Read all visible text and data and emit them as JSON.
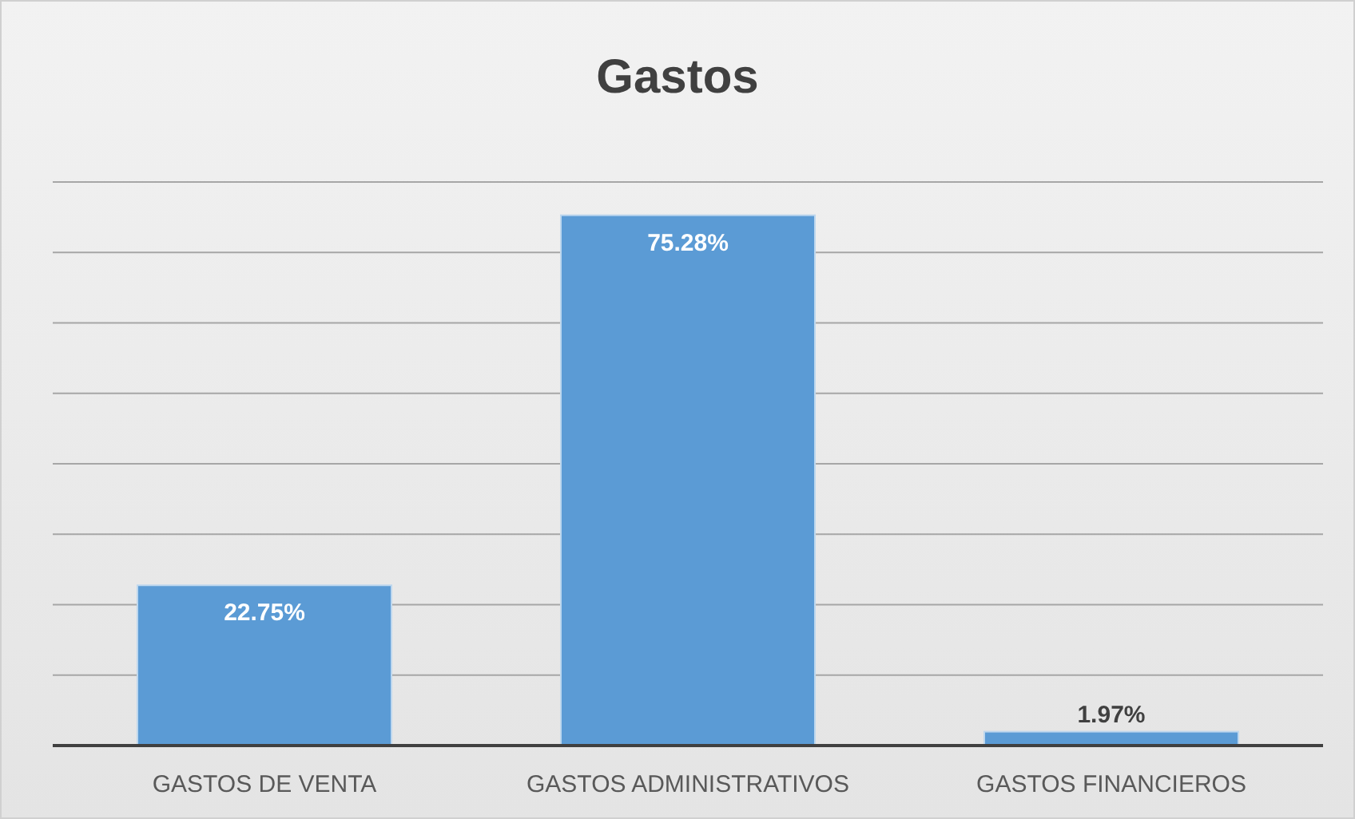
{
  "chart_data": {
    "type": "bar",
    "title": "Gastos",
    "categories": [
      "GASTOS DE VENTA",
      "GASTOS ADMINISTRATIVOS",
      "GASTOS FINANCIEROS"
    ],
    "values": [
      22.75,
      75.28,
      1.97
    ],
    "value_labels": [
      "22.75%",
      "75.28%",
      "1.97%"
    ],
    "color": "#5b9bd5",
    "ylim": [
      0,
      80
    ],
    "yticks": [
      {
        "value": 0,
        "label": null
      },
      {
        "value": 10,
        "label": null
      },
      {
        "value": 20,
        "label": null
      },
      {
        "value": 30,
        "label": null
      },
      {
        "value": 40,
        "label": null
      },
      {
        "value": 50,
        "label": null
      },
      {
        "value": 60,
        "label": null
      },
      {
        "value": 70,
        "label": null
      },
      {
        "value": 80,
        "label": null
      }
    ],
    "tick_labels": "x",
    "grid": "y"
  }
}
